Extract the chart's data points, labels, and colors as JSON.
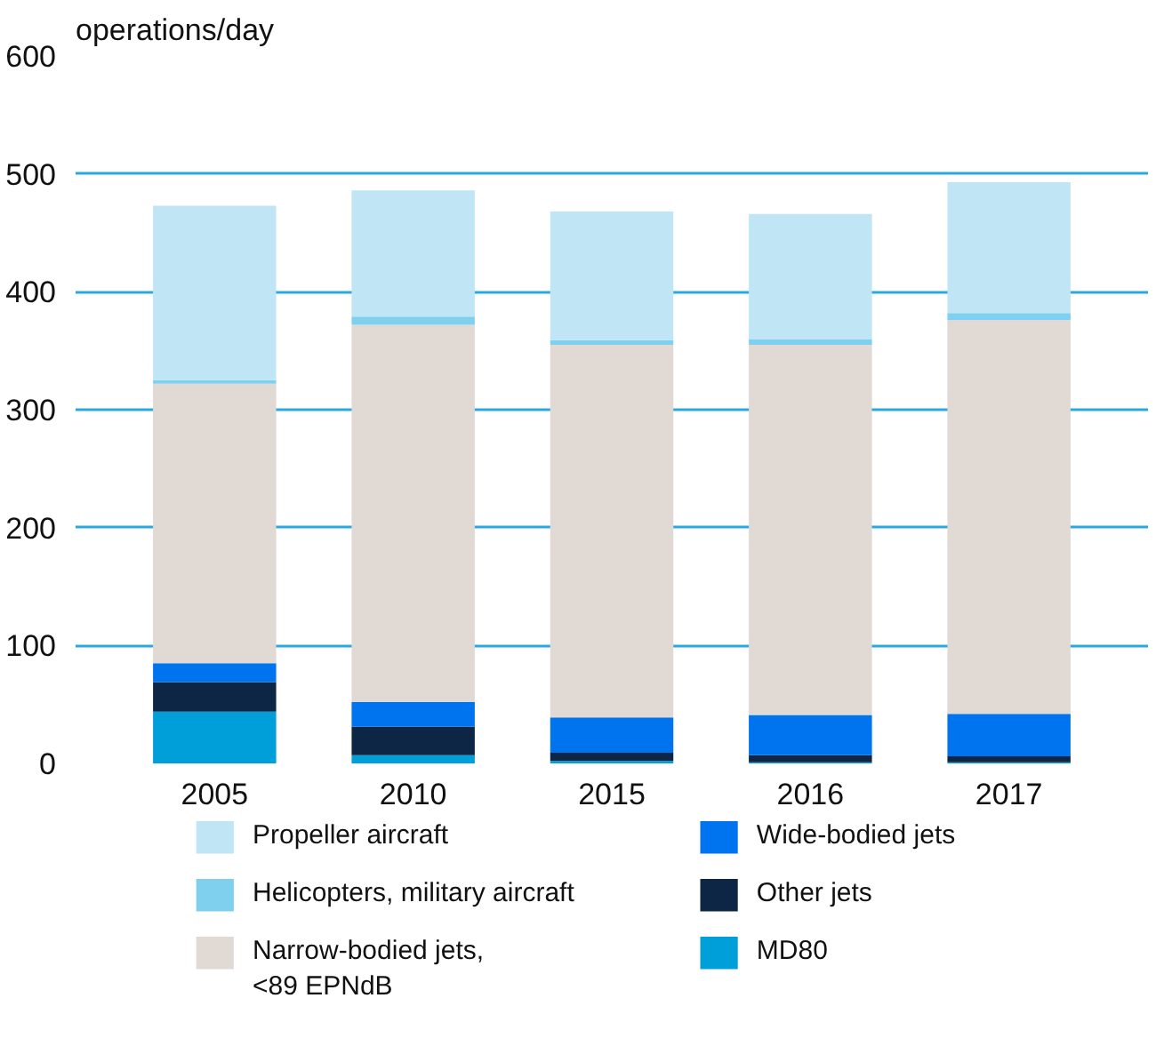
{
  "chart_data": {
    "type": "bar",
    "stacked": true,
    "ylabel": "operations/day",
    "categories": [
      "2005",
      "2010",
      "2015",
      "2016",
      "2017"
    ],
    "series": [
      {
        "name": "MD80",
        "color": "#009fd9",
        "values": [
          44,
          7,
          2,
          1,
          1
        ]
      },
      {
        "name": "Other jets",
        "color": "#0d2646",
        "values": [
          25,
          24,
          7,
          6,
          5
        ]
      },
      {
        "name": "Wide-bodied jets",
        "color": "#0073ee",
        "values": [
          16,
          21,
          30,
          34,
          36
        ]
      },
      {
        "name": "Narrow-bodied jets,\n<89 EPNdB",
        "color": "#e1d9d4",
        "values": [
          237,
          320,
          316,
          314,
          334
        ]
      },
      {
        "name": "Helicopters, military aircraft",
        "color": "#7fcfee",
        "values": [
          3,
          7,
          4,
          5,
          6
        ]
      },
      {
        "name": "Propeller aircraft",
        "color": "#c0e6f5",
        "values": [
          148,
          107,
          109,
          106,
          111
        ]
      }
    ],
    "ylim": [
      0,
      600
    ],
    "yticks": [
      0,
      100,
      200,
      300,
      400,
      500,
      600
    ],
    "grid": "y",
    "legend": "bottom"
  }
}
